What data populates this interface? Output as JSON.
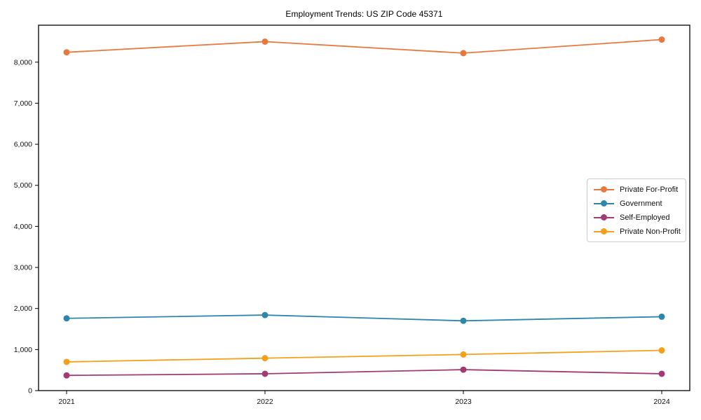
{
  "page": {
    "background_color": "#ffffff",
    "text_color": "#000000"
  },
  "chart_data": {
    "type": "line",
    "title": "Employment Trends: US ZIP Code 45371",
    "xlabel": "",
    "ylabel": "",
    "categories": [
      "2021",
      "2022",
      "2023",
      "2024"
    ],
    "series": [
      {
        "name": "Private For-Profit",
        "color": "#E8793E",
        "values": [
          8240,
          8500,
          8220,
          8550
        ]
      },
      {
        "name": "Government",
        "color": "#2E86AB",
        "values": [
          1760,
          1840,
          1700,
          1800
        ]
      },
      {
        "name": "Self-Employed",
        "color": "#A23B72",
        "values": [
          370,
          410,
          510,
          410
        ]
      },
      {
        "name": "Private Non-Profit",
        "color": "#F5A01A",
        "values": [
          700,
          790,
          880,
          980
        ]
      }
    ],
    "ylim": [
      0,
      8900
    ],
    "yticks": [
      0,
      1000,
      2000,
      3000,
      4000,
      5000,
      6000,
      7000,
      8000
    ],
    "ytick_labels": [
      "0",
      "1,000",
      "2,000",
      "3,000",
      "4,000",
      "5,000",
      "6,000",
      "7,000",
      "8,000"
    ],
    "grid": false,
    "marker": "circle",
    "legend_position": "center-right",
    "legend_border_color": "#cccccc",
    "axis_color": "#000000"
  }
}
